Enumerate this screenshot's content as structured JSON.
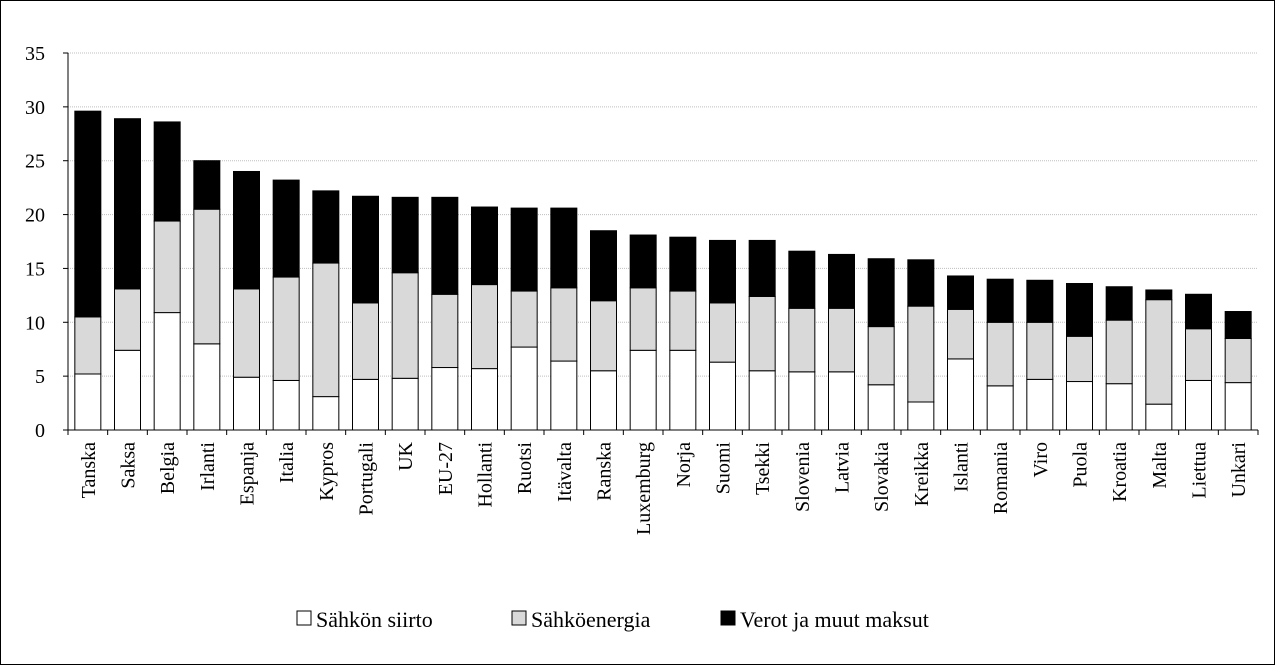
{
  "chart_data": {
    "type": "bar",
    "stacked": true,
    "ylim": [
      0,
      35
    ],
    "yticks": [
      "0",
      "5",
      "10",
      "15",
      "20",
      "25",
      "30",
      "35"
    ],
    "grid": true,
    "legend_position": "bottom",
    "categories": [
      "Tanska",
      "Saksa",
      "Belgia",
      "Irlanti",
      "Espanja",
      "Italia",
      "Kypros",
      "Portugali",
      "UK",
      "EU-27",
      "Hollanti",
      "Ruotsi",
      "Itävalta",
      "Ranska",
      "Luxemburg",
      "Norja",
      "Suomi",
      "Tsekki",
      "Slovenia",
      "Latvia",
      "Slovakia",
      "Kreikka",
      "Islanti",
      "Romania",
      "Viro",
      "Puola",
      "Kroatia",
      "Malta",
      "Liettua",
      "Unkari"
    ],
    "series": [
      {
        "name": "Sähkön siirto",
        "color": "#ffffff",
        "values": [
          5.2,
          7.4,
          10.9,
          8.0,
          4.9,
          4.6,
          3.1,
          4.7,
          4.8,
          5.8,
          5.7,
          7.7,
          6.4,
          5.5,
          7.4,
          7.4,
          6.3,
          5.5,
          5.4,
          5.4,
          4.2,
          2.6,
          6.6,
          4.1,
          4.7,
          4.5,
          4.3,
          2.4,
          4.6,
          4.4
        ]
      },
      {
        "name": "Sähköenergia",
        "color": "#d9d9d9",
        "values": [
          5.3,
          5.7,
          8.5,
          12.5,
          8.2,
          9.6,
          12.4,
          7.1,
          9.8,
          6.8,
          7.8,
          5.2,
          6.8,
          6.5,
          5.8,
          5.5,
          5.5,
          6.9,
          5.9,
          5.9,
          5.4,
          8.9,
          4.6,
          5.9,
          5.3,
          4.2,
          5.9,
          9.7,
          4.8,
          4.1
        ]
      },
      {
        "name": "Verot ja muut maksut",
        "color": "#000000",
        "values": [
          19.1,
          15.8,
          9.2,
          4.5,
          10.9,
          9.0,
          6.7,
          9.9,
          7.0,
          9.0,
          7.2,
          7.7,
          7.4,
          6.5,
          4.9,
          5.0,
          5.8,
          5.2,
          5.3,
          5.0,
          6.3,
          4.3,
          3.1,
          4.0,
          3.9,
          4.9,
          3.1,
          0.9,
          3.2,
          2.5
        ]
      }
    ]
  }
}
